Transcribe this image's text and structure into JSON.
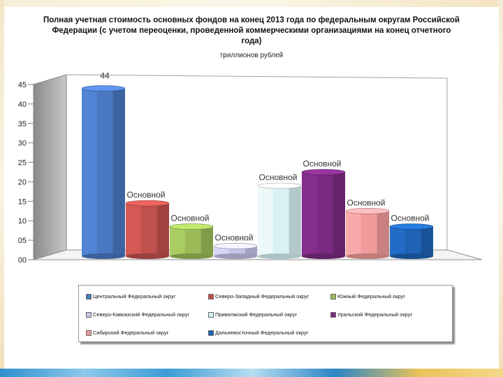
{
  "chart_data": {
    "type": "bar",
    "title": "Полная учетная стоимость основных фондов на конец 2013 года  по федеральным округам Российской Федерации (с учетом переоценки, проведенной коммерческими организациями на конец отчетного года)",
    "subtitle": "триллионов рублей",
    "ylim": [
      0,
      45
    ],
    "yticks": [
      "00",
      "05",
      "10",
      "15",
      "20",
      "25",
      "30",
      "35",
      "40",
      "45"
    ],
    "grid": false,
    "legend_position": "bottom",
    "series": [
      {
        "name": "Центральный Федеральный округ",
        "value": 44,
        "label": "44",
        "color": "#4a78c0"
      },
      {
        "name": "Северо-Западный Федеральный округ",
        "value": 14.5,
        "label": "Основной",
        "color": "#c0504d"
      },
      {
        "name": "Южный Федеральный округ",
        "value": 8.5,
        "label": "Основной",
        "color": "#9bbb59"
      },
      {
        "name": "Северо-Кавказский Федеральный округ",
        "value": 3.5,
        "label": "Основной",
        "color": "#c4c4e8"
      },
      {
        "name": "Приволжский Федеральный округ",
        "value": 19,
        "label": "Основной",
        "color": "#d8f2f2"
      },
      {
        "name": "Уральский Федеральный округ",
        "value": 22.5,
        "label": "Основной",
        "color": "#7a2a80"
      },
      {
        "name": "Сибирский Федеральный округ",
        "value": 12.5,
        "label": "Основной",
        "color": "#f09a9a"
      },
      {
        "name": "Дальневосточный Федеральный округ",
        "value": 8.5,
        "label": "Основной",
        "color": "#1f63b5"
      }
    ],
    "legend_entries": [
      {
        "text": "Центральный Федеральный округ",
        "color": "#4a78c0"
      },
      {
        "text": "Северо-Западный Федеральный округ",
        "color": "#c0504d"
      },
      {
        "text": "Южный Федеральный округ",
        "color": "#9bbb59"
      },
      {
        "text": "Северо-Кавказский Федеральный округ",
        "color": "#c4c4e8"
      },
      {
        "text": "Приволжский Федеральный округ",
        "color": "#d8f2f2"
      },
      {
        "text": "Уральский Федеральный округ",
        "color": "#7a2a80"
      },
      {
        "text": "Сибирский Федеральный округ",
        "color": "#f09a9a"
      },
      {
        "text": "Дальневосточный Федеральный округ",
        "color": "#1f63b5"
      }
    ]
  }
}
